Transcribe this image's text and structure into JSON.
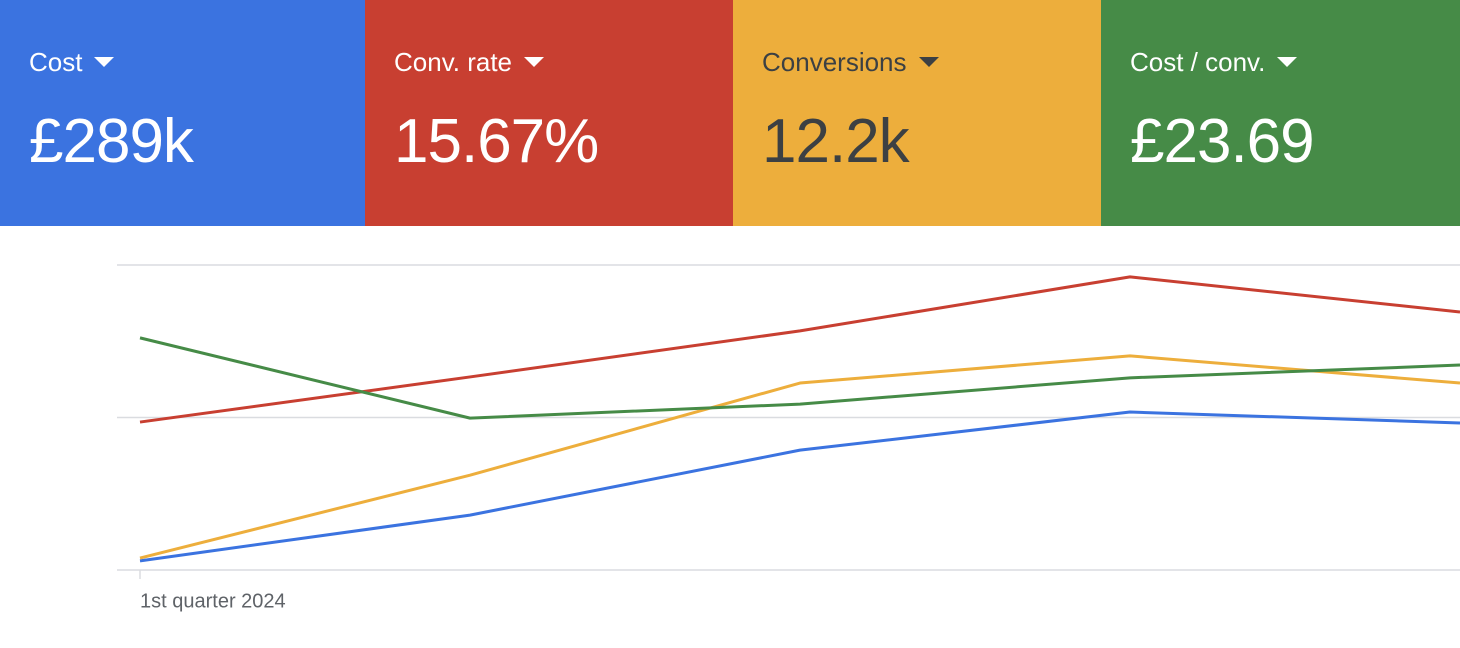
{
  "chart_data": {
    "type": "line",
    "categories": [
      "1st quarter 2024",
      null,
      null,
      null,
      null
    ],
    "series": [
      {
        "name": "Cost",
        "total": "£289k",
        "color": "#3b73e0",
        "values": [
          3.0,
          18.0,
          39.3,
          51.8,
          48.2
        ]
      },
      {
        "name": "Conv. rate",
        "total": "15.67%",
        "color": "#c83f31",
        "values": [
          48.5,
          63.3,
          78.4,
          96.1,
          84.6
        ]
      },
      {
        "name": "Conversions",
        "total": "12.2k",
        "color": "#edae3c",
        "values": [
          3.9,
          31.1,
          61.3,
          70.2,
          61.3
        ]
      },
      {
        "name": "Cost / conv.",
        "total": "£23.69",
        "color": "#468b47",
        "values": [
          76.1,
          49.8,
          54.4,
          63.0,
          67.2
        ]
      }
    ],
    "ylim": [
      0,
      100
    ],
    "yticks": [
      0,
      50,
      100
    ],
    "grid": true
  }
}
